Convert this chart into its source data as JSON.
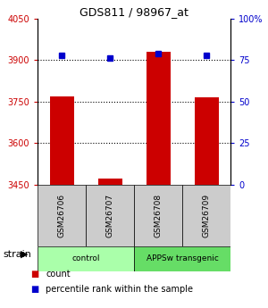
{
  "title": "GDS811 / 98967_at",
  "samples": [
    "GSM26706",
    "GSM26707",
    "GSM26708",
    "GSM26709"
  ],
  "count_values": [
    3770,
    3473,
    3930,
    3765
  ],
  "percentile_values": [
    78,
    76,
    79,
    78
  ],
  "ylim_left": [
    3450,
    4050
  ],
  "ylim_right": [
    0,
    100
  ],
  "yticks_left": [
    3450,
    3600,
    3750,
    3900,
    4050
  ],
  "yticks_right": [
    0,
    25,
    50,
    75,
    100
  ],
  "yticklabels_right": [
    "0",
    "25",
    "50",
    "75",
    "100%"
  ],
  "bar_color": "#cc0000",
  "dot_color": "#0000cc",
  "groups": [
    {
      "label": "control",
      "samples": [
        0,
        1
      ],
      "color": "#aaffaa"
    },
    {
      "label": "APPSw transgenic",
      "samples": [
        2,
        3
      ],
      "color": "#66dd66"
    }
  ],
  "strain_label": "strain",
  "legend_items": [
    {
      "label": "count",
      "color": "#cc0000"
    },
    {
      "label": "percentile rank within the sample",
      "color": "#0000cc"
    }
  ],
  "sample_box_color": "#cccccc",
  "fig_width": 3.0,
  "fig_height": 3.45
}
